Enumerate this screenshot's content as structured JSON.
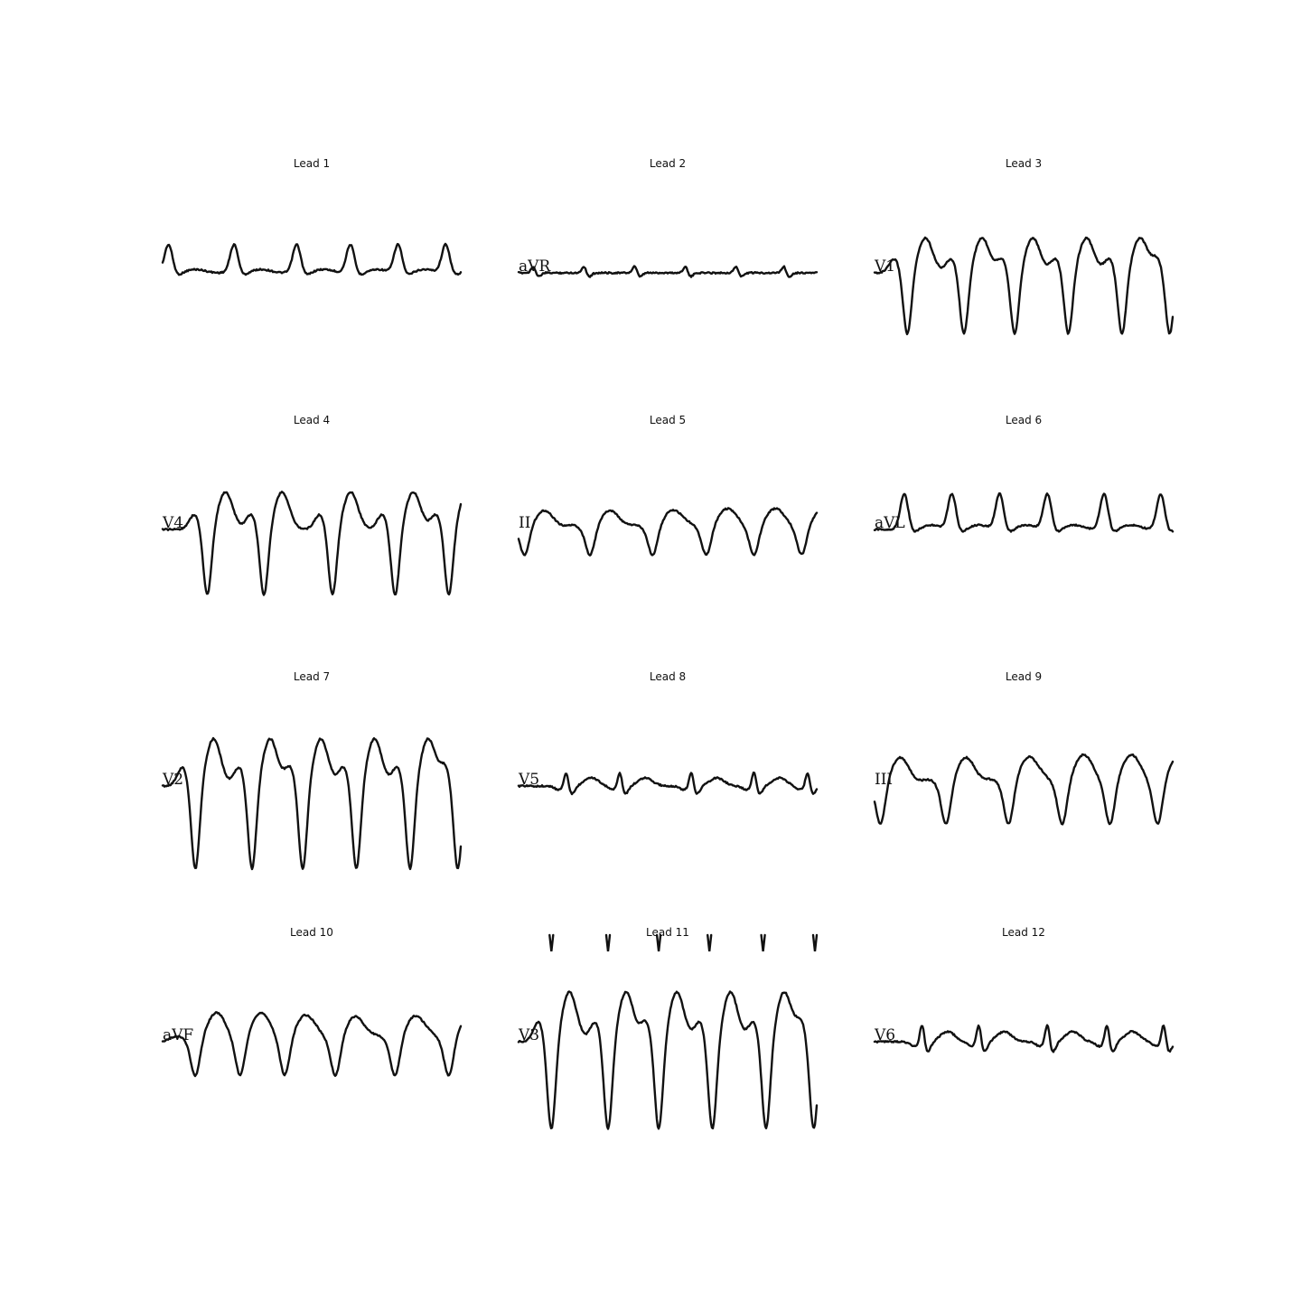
{
  "chart_data": {
    "type": "line",
    "description_layout": "grid-3x4",
    "panels": [
      {
        "title": "Lead 1",
        "label": "",
        "shape": "upright",
        "amp": 32,
        "beats": [
          0.02,
          0.24,
          0.45,
          0.63,
          0.79,
          0.95
        ]
      },
      {
        "title": "Lead 2",
        "label": "aVR",
        "shape": "flat",
        "amp": 8,
        "beats": [
          0.05,
          0.22,
          0.39,
          0.56,
          0.73,
          0.89
        ]
      },
      {
        "title": "Lead 3",
        "label": "V1",
        "shape": "deep",
        "amp": 70,
        "beats": [
          0.11,
          0.3,
          0.47,
          0.65,
          0.83,
          0.99
        ]
      },
      {
        "title": "Lead 4",
        "label": "V4",
        "shape": "deep",
        "amp": 75,
        "beats": [
          0.15,
          0.34,
          0.57,
          0.78,
          0.96
        ]
      },
      {
        "title": "Lead 5",
        "label": "II",
        "shape": "wide",
        "amp": 30,
        "beats": [
          0.02,
          0.24,
          0.45,
          0.63,
          0.79,
          0.95
        ]
      },
      {
        "title": "Lead 6",
        "label": "aVL",
        "shape": "upright",
        "amp": 40,
        "beats": [
          0.1,
          0.26,
          0.42,
          0.58,
          0.77,
          0.96
        ]
      },
      {
        "title": "Lead 7",
        "label": "V2",
        "shape": "deep",
        "amp": 95,
        "beats": [
          0.11,
          0.3,
          0.47,
          0.65,
          0.83,
          0.99
        ]
      },
      {
        "title": "Lead 8",
        "label": "V5",
        "shape": "small",
        "amp": 20,
        "beats": [
          0.16,
          0.34,
          0.58,
          0.79,
          0.97
        ]
      },
      {
        "title": "Lead 9",
        "label": "III",
        "shape": "wide",
        "amp": 45,
        "beats": [
          0.02,
          0.24,
          0.45,
          0.63,
          0.79,
          0.95
        ]
      },
      {
        "title": "Lead 10",
        "label": "aVF",
        "shape": "wide",
        "amp": 40,
        "beats": [
          0.11,
          0.26,
          0.41,
          0.58,
          0.78,
          0.96
        ]
      },
      {
        "title": "Lead 11",
        "label": "V3",
        "shape": "deep",
        "amp": 100,
        "beats": [
          0.11,
          0.3,
          0.47,
          0.65,
          0.83,
          0.99
        ],
        "markers": [
          0.11,
          0.3,
          0.47,
          0.64,
          0.82,
          1.0
        ]
      },
      {
        "title": "Lead 12",
        "label": "V6",
        "shape": "small",
        "amp": 25,
        "beats": [
          0.16,
          0.35,
          0.58,
          0.78,
          0.97
        ]
      }
    ]
  }
}
